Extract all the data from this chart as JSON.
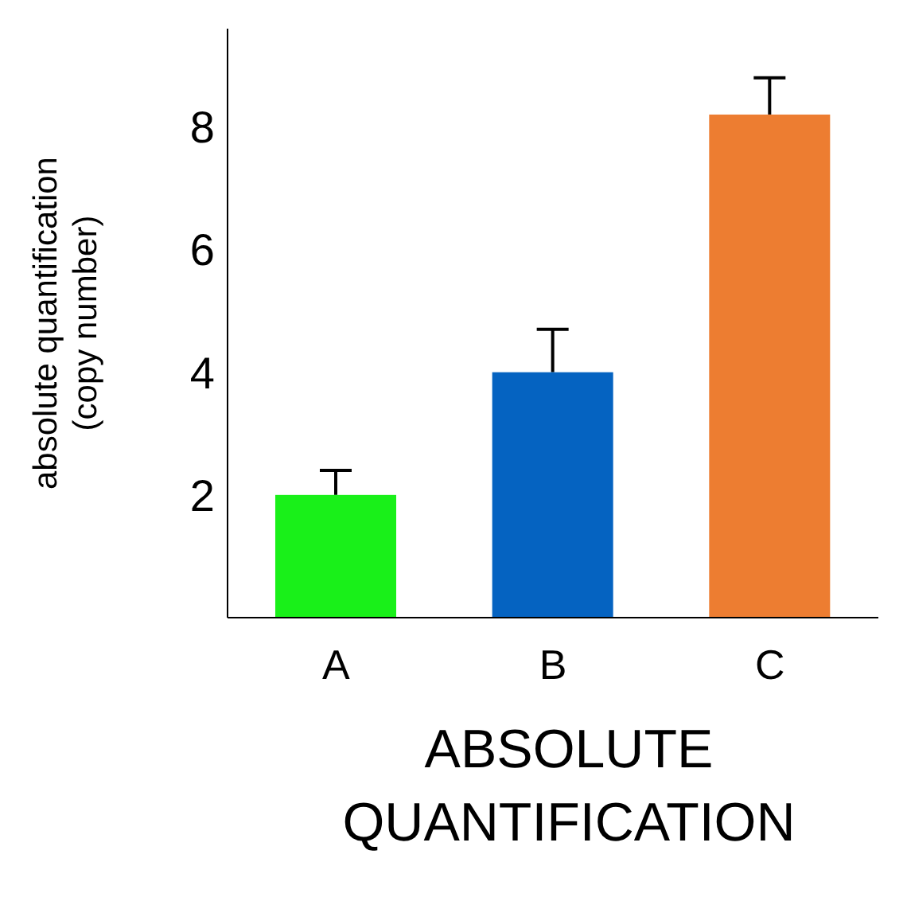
{
  "chart_data": {
    "type": "bar",
    "xlabel": "ABSOLUTE\nQUANTIFICATION",
    "ylabel": "absolute quantification\n(copy number)",
    "categories": [
      "A",
      "B",
      "C"
    ],
    "values": [
      2,
      4,
      8.2
    ],
    "errors": [
      [
        2,
        2.4
      ],
      [
        4,
        4.7
      ],
      [
        8.2,
        8.8
      ]
    ],
    "colors": [
      "#19f019",
      "#0563c1",
      "#ed7d31"
    ],
    "ylim": [
      0,
      9.6
    ],
    "yticks": [
      2,
      4,
      6,
      8
    ]
  }
}
